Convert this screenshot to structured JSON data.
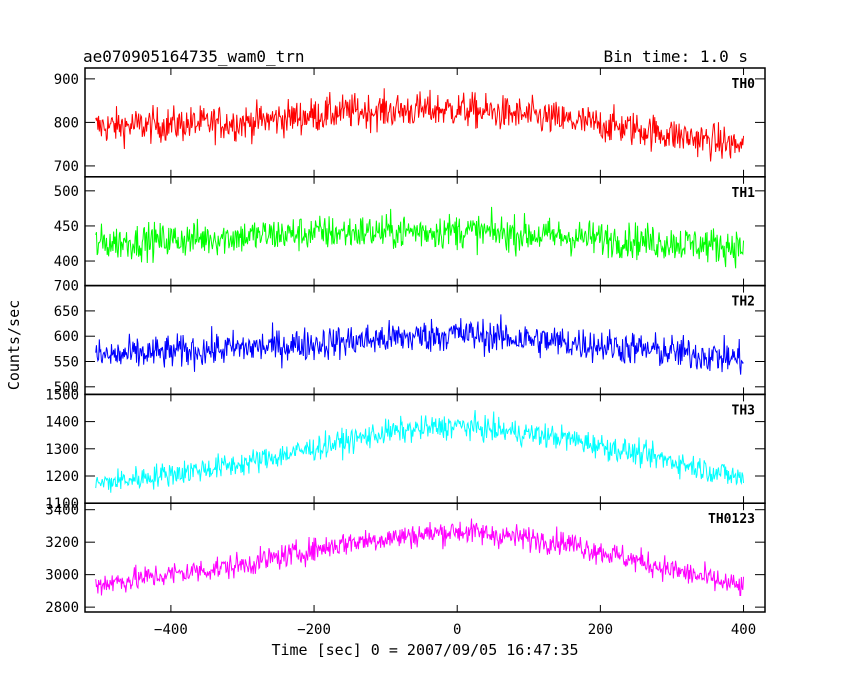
{
  "chart_data": {
    "type": "line",
    "title_left": "ae070905164735_wam0_trn",
    "title_right": "Bin time: 1.0 s",
    "xlabel": "Time [sec] 0 = 2007/09/05 16:47:35",
    "ylabel": "Counts/sec",
    "xlim": [
      -520,
      430
    ],
    "xticks": [
      -400,
      -200,
      0,
      200,
      400
    ],
    "data_x_range": [
      -505,
      400
    ],
    "panels": [
      {
        "name": "TH0",
        "color": "#ff0000",
        "ylim": [
          675,
          925
        ],
        "yticks": [
          700,
          800,
          900
        ],
        "trend": [
          {
            "x": -505,
            "y": 790
          },
          {
            "x": -300,
            "y": 800
          },
          {
            "x": -150,
            "y": 825
          },
          {
            "x": 0,
            "y": 830
          },
          {
            "x": 100,
            "y": 815
          },
          {
            "x": 250,
            "y": 785
          },
          {
            "x": 400,
            "y": 745
          }
        ],
        "noise_amplitude": 40
      },
      {
        "name": "TH1",
        "color": "#00ff00",
        "ylim": [
          365,
          520
        ],
        "yticks": [
          400,
          450,
          500
        ],
        "trend": [
          {
            "x": -505,
            "y": 425
          },
          {
            "x": -200,
            "y": 440
          },
          {
            "x": 0,
            "y": 443
          },
          {
            "x": 200,
            "y": 432
          },
          {
            "x": 400,
            "y": 420
          }
        ],
        "noise_amplitude": 25
      },
      {
        "name": "TH2",
        "color": "#0000ff",
        "ylim": [
          485,
          700
        ],
        "yticks": [
          500,
          550,
          600,
          650,
          700
        ],
        "trend": [
          {
            "x": -505,
            "y": 560
          },
          {
            "x": -200,
            "y": 585
          },
          {
            "x": 0,
            "y": 605
          },
          {
            "x": 200,
            "y": 582
          },
          {
            "x": 400,
            "y": 555
          }
        ],
        "noise_amplitude": 33
      },
      {
        "name": "TH3",
        "color": "#00ffff",
        "ylim": [
          1100,
          1500
        ],
        "yticks": [
          1100,
          1200,
          1300,
          1400,
          1500
        ],
        "trend": [
          {
            "x": -505,
            "y": 1170
          },
          {
            "x": -300,
            "y": 1245
          },
          {
            "x": -100,
            "y": 1360
          },
          {
            "x": 0,
            "y": 1385
          },
          {
            "x": 150,
            "y": 1340
          },
          {
            "x": 300,
            "y": 1255
          },
          {
            "x": 400,
            "y": 1190
          }
        ],
        "noise_amplitude": 45
      },
      {
        "name": "TH0123",
        "color": "#ff00ff",
        "ylim": [
          2770,
          3440
        ],
        "yticks": [
          2800,
          3000,
          3200,
          3400
        ],
        "trend": [
          {
            "x": -505,
            "y": 2940
          },
          {
            "x": -300,
            "y": 3060
          },
          {
            "x": -150,
            "y": 3200
          },
          {
            "x": 0,
            "y": 3270
          },
          {
            "x": 150,
            "y": 3200
          },
          {
            "x": 300,
            "y": 3030
          },
          {
            "x": 400,
            "y": 2920
          }
        ],
        "noise_amplitude": 75
      }
    ]
  }
}
